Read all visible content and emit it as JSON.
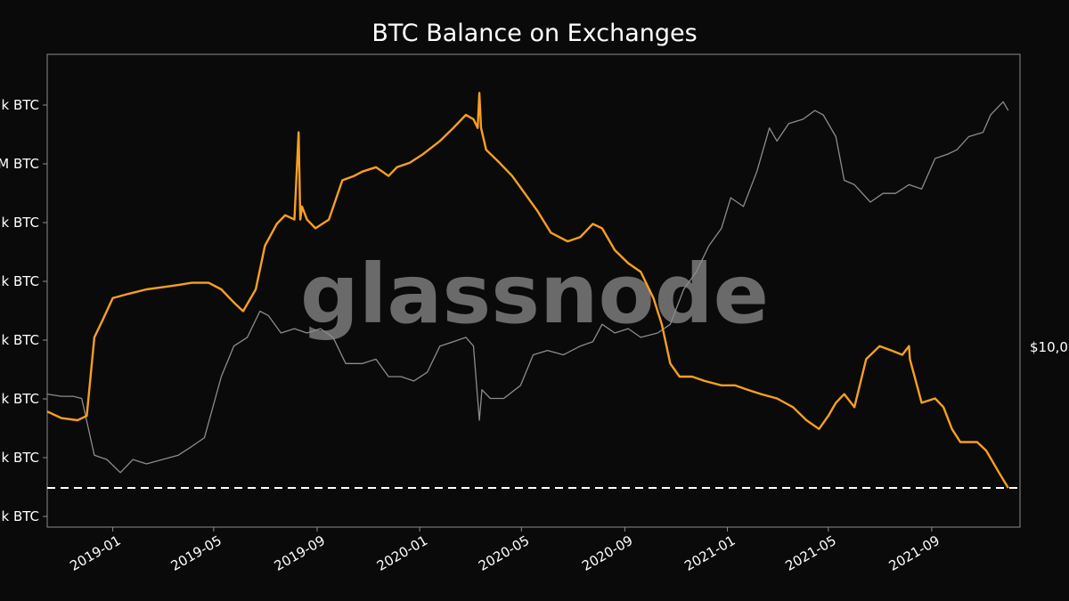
{
  "chart_data": {
    "type": "line",
    "title": "BTC Balance on Exchanges",
    "watermark": "glassnode",
    "grid": false,
    "xlim": [
      "2018-10-15",
      "2021-12-15"
    ],
    "x_ticks": [
      "2019-01",
      "2019-05",
      "2019-09",
      "2020-01",
      "2020-05",
      "2020-09",
      "2021-01",
      "2021-05",
      "2021-09"
    ],
    "y_ticks_left": [
      "k BTC",
      "M BTC",
      "k BTC",
      "k BTC",
      "k BTC",
      "k BTC",
      "k BTC",
      "k BTC"
    ],
    "y_tick_right": "$10,0",
    "reference_line": {
      "style": "dashed",
      "color": "#ffffff",
      "level_fraction": 0.045
    },
    "colors": {
      "background": "#0a0a0a",
      "balance": "#f7a01e",
      "price": "#8c8c8c",
      "axes": "#8c8c8c"
    },
    "series": [
      {
        "color": "#f7a01e",
        "axis": "left",
        "dates": [
          "2018-10-15",
          "2018-11-01",
          "2018-11-20",
          "2018-12-01",
          "2018-12-10",
          "2018-12-20",
          "2019-01-01",
          "2019-01-20",
          "2019-02-10",
          "2019-03-01",
          "2019-03-20",
          "2019-04-05",
          "2019-04-25",
          "2019-05-10",
          "2019-05-25",
          "2019-06-05",
          "2019-06-20",
          "2019-07-01",
          "2019-07-15",
          "2019-07-25",
          "2019-08-05",
          "2019-08-10",
          "2019-08-12",
          "2019-08-14",
          "2019-08-20",
          "2019-08-30",
          "2019-09-15",
          "2019-10-01",
          "2019-10-15",
          "2019-10-25",
          "2019-11-10",
          "2019-11-25",
          "2019-12-05",
          "2019-12-20",
          "2020-01-05",
          "2020-01-25",
          "2020-02-10",
          "2020-02-25",
          "2020-03-05",
          "2020-03-10",
          "2020-03-12",
          "2020-03-14",
          "2020-03-20",
          "2020-04-05",
          "2020-04-20",
          "2020-05-05",
          "2020-05-20",
          "2020-06-05",
          "2020-06-25",
          "2020-07-10",
          "2020-07-25",
          "2020-08-05",
          "2020-08-20",
          "2020-09-05",
          "2020-09-20",
          "2020-10-05",
          "2020-10-15",
          "2020-10-25",
          "2020-11-05",
          "2020-11-20",
          "2020-12-05",
          "2020-12-25",
          "2021-01-10",
          "2021-01-25",
          "2021-02-10",
          "2021-03-01",
          "2021-03-20",
          "2021-04-05",
          "2021-04-20",
          "2021-05-01",
          "2021-05-10",
          "2021-05-20",
          "2021-06-01",
          "2021-06-15",
          "2021-07-01",
          "2021-07-15",
          "2021-07-28",
          "2021-08-05",
          "2021-08-06",
          "2021-08-20",
          "2021-09-05",
          "2021-09-15",
          "2021-09-25",
          "2021-10-05",
          "2021-10-15",
          "2021-10-25",
          "2021-11-05",
          "2021-11-20",
          "2021-12-01"
        ],
        "values": [
          0.22,
          0.205,
          0.2,
          0.21,
          0.39,
          0.43,
          0.48,
          0.49,
          0.5,
          0.505,
          0.51,
          0.515,
          0.515,
          0.5,
          0.47,
          0.45,
          0.5,
          0.6,
          0.65,
          0.67,
          0.66,
          0.86,
          0.66,
          0.69,
          0.66,
          0.64,
          0.66,
          0.75,
          0.76,
          0.77,
          0.78,
          0.76,
          0.78,
          0.79,
          0.81,
          0.84,
          0.87,
          0.9,
          0.89,
          0.87,
          0.95,
          0.87,
          0.82,
          0.79,
          0.76,
          0.72,
          0.68,
          0.63,
          0.61,
          0.62,
          0.65,
          0.64,
          0.59,
          0.56,
          0.54,
          0.48,
          0.42,
          0.33,
          0.3,
          0.3,
          0.29,
          0.28,
          0.28,
          0.27,
          0.26,
          0.25,
          0.23,
          0.2,
          0.18,
          0.21,
          0.24,
          0.26,
          0.23,
          0.34,
          0.37,
          0.36,
          0.35,
          0.37,
          0.34,
          0.24,
          0.25,
          0.23,
          0.18,
          0.15,
          0.15,
          0.15,
          0.13,
          0.08,
          0.045
        ]
      },
      {
        "color": "#8c8c8c",
        "axis": "right",
        "dates": [
          "2018-10-15",
          "2018-11-01",
          "2018-11-15",
          "2018-11-25",
          "2018-12-10",
          "2018-12-25",
          "2019-01-10",
          "2019-01-25",
          "2019-02-10",
          "2019-03-01",
          "2019-03-20",
          "2019-04-05",
          "2019-04-20",
          "2019-05-10",
          "2019-05-25",
          "2019-06-10",
          "2019-06-25",
          "2019-07-05",
          "2019-07-20",
          "2019-08-05",
          "2019-08-20",
          "2019-09-05",
          "2019-09-20",
          "2019-10-05",
          "2019-10-25",
          "2019-11-10",
          "2019-11-25",
          "2019-12-10",
          "2019-12-25",
          "2020-01-10",
          "2020-01-25",
          "2020-02-10",
          "2020-02-25",
          "2020-03-05",
          "2020-03-12",
          "2020-03-15",
          "2020-03-25",
          "2020-04-10",
          "2020-04-30",
          "2020-05-15",
          "2020-06-01",
          "2020-06-20",
          "2020-07-10",
          "2020-07-25",
          "2020-08-05",
          "2020-08-20",
          "2020-09-05",
          "2020-09-20",
          "2020-10-10",
          "2020-10-25",
          "2020-11-10",
          "2020-11-25",
          "2020-12-10",
          "2020-12-25",
          "2021-01-05",
          "2021-01-20",
          "2021-02-05",
          "2021-02-20",
          "2021-03-01",
          "2021-03-15",
          "2021-04-01",
          "2021-04-15",
          "2021-04-25",
          "2021-05-10",
          "2021-05-20",
          "2021-06-01",
          "2021-06-20",
          "2021-07-05",
          "2021-07-20",
          "2021-08-05",
          "2021-08-20",
          "2021-09-05",
          "2021-09-20",
          "2021-10-01",
          "2021-10-15",
          "2021-11-01",
          "2021-11-10",
          "2021-11-25",
          "2021-12-01"
        ],
        "values": [
          0.26,
          0.255,
          0.255,
          0.25,
          0.12,
          0.11,
          0.08,
          0.11,
          0.1,
          0.11,
          0.12,
          0.14,
          0.16,
          0.3,
          0.37,
          0.39,
          0.45,
          0.44,
          0.4,
          0.41,
          0.4,
          0.41,
          0.39,
          0.33,
          0.33,
          0.34,
          0.3,
          0.3,
          0.29,
          0.31,
          0.37,
          0.38,
          0.39,
          0.37,
          0.2,
          0.27,
          0.25,
          0.25,
          0.28,
          0.35,
          0.36,
          0.35,
          0.37,
          0.38,
          0.42,
          0.4,
          0.41,
          0.39,
          0.4,
          0.42,
          0.5,
          0.54,
          0.6,
          0.64,
          0.71,
          0.69,
          0.77,
          0.87,
          0.84,
          0.88,
          0.89,
          0.91,
          0.9,
          0.85,
          0.75,
          0.74,
          0.7,
          0.72,
          0.72,
          0.74,
          0.73,
          0.8,
          0.81,
          0.82,
          0.85,
          0.86,
          0.9,
          0.93,
          0.91
        ]
      }
    ]
  }
}
